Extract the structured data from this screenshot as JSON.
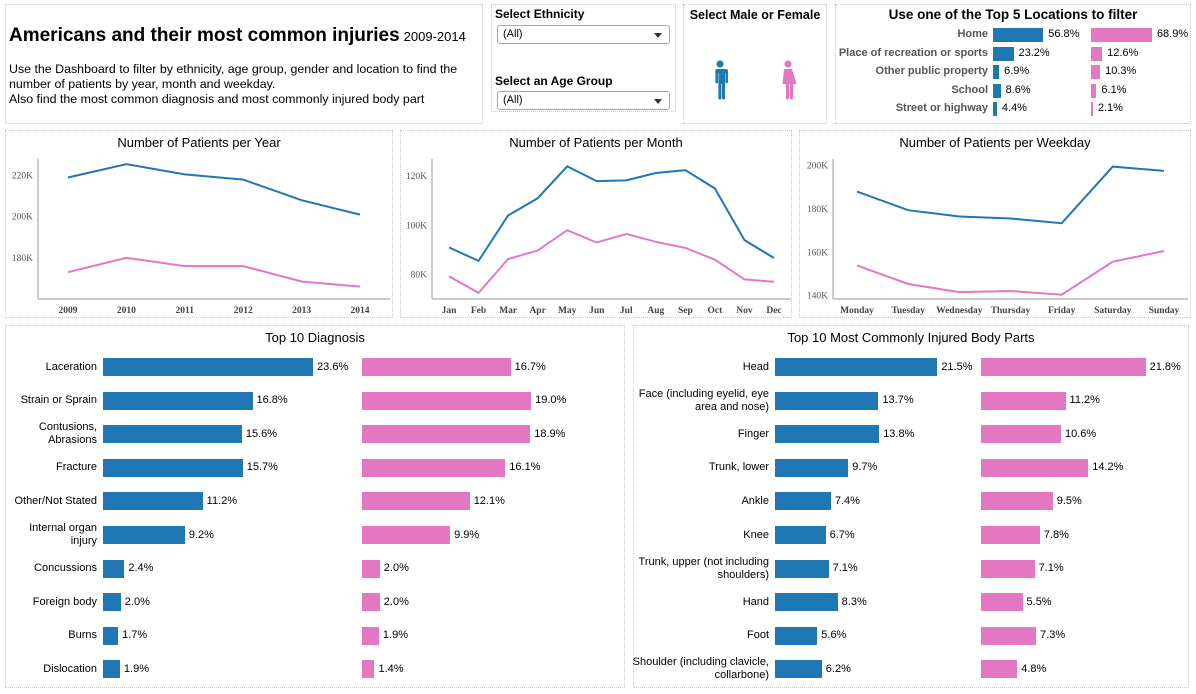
{
  "colors": {
    "male": "#1f77b4",
    "female": "#e377c2"
  },
  "header": {
    "title": "Americans and their most common injuries",
    "years": "2009-2014",
    "description_lines": [
      "Use the Dashboard to filter by ethnicity, age group, gender and location to find the number of patients by year, month and weekday.",
      "Also find the most common diagnosis and most commonly injured body part"
    ]
  },
  "filters": {
    "ethnicity_label": "Select Ethnicity",
    "ethnicity_value": "(All)",
    "age_label": "Select an Age Group",
    "age_value": "(All)"
  },
  "gender": {
    "title": "Select Male or Female",
    "options": [
      {
        "name": "Male",
        "icon": "male-icon"
      },
      {
        "name": "Female",
        "icon": "female-icon"
      }
    ]
  },
  "locations": {
    "title": "Use one of the Top 5 Locations to filter",
    "rows": [
      {
        "label": "Home",
        "male": 56.8,
        "female": 68.9,
        "male_text": "56.8%",
        "female_text": "68.9%"
      },
      {
        "label": "Place of recreation or sports",
        "male": 23.2,
        "female": 12.6,
        "male_text": "23.2%",
        "female_text": "12.6%"
      },
      {
        "label": "Other public property",
        "male": 6.9,
        "female": 10.3,
        "male_text": "6.9%",
        "female_text": "10.3%"
      },
      {
        "label": "School",
        "male": 8.6,
        "female": 6.1,
        "male_text": "8.6%",
        "female_text": "6.1%"
      },
      {
        "label": "Street or highway",
        "male": 4.4,
        "female": 2.1,
        "male_text": "4.4%",
        "female_text": "2.1%"
      }
    ]
  },
  "chart_data": [
    {
      "type": "line",
      "title": "Number of Patients per Year",
      "x": [
        "2009",
        "2010",
        "2011",
        "2012",
        "2013",
        "2014"
      ],
      "ylim": [
        160000,
        228000
      ],
      "yticks": [
        180000,
        200000,
        220000
      ],
      "ytick_labels": [
        "180K",
        "200K",
        "220K"
      ],
      "series": [
        {
          "name": "Male",
          "color": "#1f77b4",
          "values": [
            219000,
            225500,
            220500,
            218000,
            208000,
            201000
          ]
        },
        {
          "name": "Female",
          "color": "#e377c2",
          "values": [
            173000,
            180000,
            176000,
            176000,
            168500,
            166000
          ]
        }
      ]
    },
    {
      "type": "line",
      "title": "Number of Patients per Month",
      "x": [
        "Jan",
        "Feb",
        "Mar",
        "Apr",
        "May",
        "Jun",
        "Jul",
        "Aug",
        "Sep",
        "Oct",
        "Nov",
        "Dec"
      ],
      "ylim": [
        70000,
        127000
      ],
      "yticks": [
        80000,
        100000,
        120000
      ],
      "ytick_labels": [
        "80K",
        "100K",
        "120K"
      ],
      "series": [
        {
          "name": "Male",
          "color": "#1f77b4",
          "values": [
            91000,
            85500,
            104000,
            111000,
            124000,
            118000,
            118300,
            121300,
            122500,
            115000,
            94000,
            86700
          ]
        },
        {
          "name": "Female",
          "color": "#e377c2",
          "values": [
            79300,
            72500,
            86300,
            89700,
            98000,
            93000,
            96500,
            93300,
            90800,
            86000,
            78000,
            77000
          ]
        }
      ]
    },
    {
      "type": "line",
      "title": "Number of Patients per Weekday",
      "x": [
        "Monday",
        "Tuesday",
        "Wednesday",
        "Thursday",
        "Friday",
        "Saturday",
        "Sunday"
      ],
      "ylim": [
        138500,
        203000
      ],
      "yticks": [
        140000,
        160000,
        180000,
        200000
      ],
      "ytick_labels": [
        "140K",
        "160K",
        "180K",
        "200K"
      ],
      "series": [
        {
          "name": "Male",
          "color": "#1f77b4",
          "values": [
            188000,
            179400,
            176500,
            175600,
            173400,
            199500,
            197500
          ]
        },
        {
          "name": "Female",
          "color": "#e377c2",
          "values": [
            154000,
            145400,
            141700,
            142200,
            140500,
            155700,
            160600
          ]
        }
      ]
    },
    {
      "type": "bar",
      "title": "Top 10 Diagnosis",
      "categories": [
        "Laceration",
        "Strain or Sprain",
        "Contusions, Abrasions",
        "Fracture",
        "Other/Not Stated",
        "Internal organ injury",
        "Concussions",
        "Foreign body",
        "Burns",
        "Dislocation"
      ],
      "series": [
        {
          "name": "Male",
          "color": "#1f77b4",
          "values": [
            23.6,
            16.8,
            15.6,
            15.7,
            11.2,
            9.2,
            2.4,
            2.0,
            1.7,
            1.9
          ],
          "labels": [
            "23.6%",
            "16.8%",
            "15.6%",
            "15.7%",
            "11.2%",
            "9.2%",
            "2.4%",
            "2.0%",
            "1.7%",
            "1.9%"
          ]
        },
        {
          "name": "Female",
          "color": "#e377c2",
          "values": [
            16.7,
            19.0,
            18.9,
            16.1,
            12.1,
            9.9,
            2.0,
            2.0,
            1.9,
            1.4
          ],
          "labels": [
            "16.7%",
            "19.0%",
            "18.9%",
            "16.1%",
            "12.1%",
            "9.9%",
            "2.0%",
            "2.0%",
            "1.9%",
            "1.4%"
          ]
        }
      ]
    },
    {
      "type": "bar",
      "title": "Top 10 Most Commonly Injured Body Parts",
      "categories": [
        "Head",
        "Face (including eyelid, eye area and nose)",
        "Finger",
        "Trunk, lower",
        "Ankle",
        "Knee",
        "Trunk, upper (not including shoulders)",
        "Hand",
        "Foot",
        "Shoulder (including clavicle, collarbone)"
      ],
      "series": [
        {
          "name": "Male",
          "color": "#1f77b4",
          "values": [
            21.5,
            13.7,
            13.8,
            9.7,
            7.4,
            6.7,
            7.1,
            8.3,
            5.6,
            6.2
          ],
          "labels": [
            "21.5%",
            "13.7%",
            "13.8%",
            "9.7%",
            "7.4%",
            "6.7%",
            "7.1%",
            "8.3%",
            "5.6%",
            "6.2%"
          ]
        },
        {
          "name": "Female",
          "color": "#e377c2",
          "values": [
            21.8,
            11.2,
            10.6,
            14.2,
            9.5,
            7.8,
            7.1,
            5.5,
            7.3,
            4.8
          ],
          "labels": [
            "21.8%",
            "11.2%",
            "10.6%",
            "14.2%",
            "9.5%",
            "7.8%",
            "7.1%",
            "5.5%",
            "7.3%",
            "4.8%"
          ]
        }
      ]
    }
  ]
}
